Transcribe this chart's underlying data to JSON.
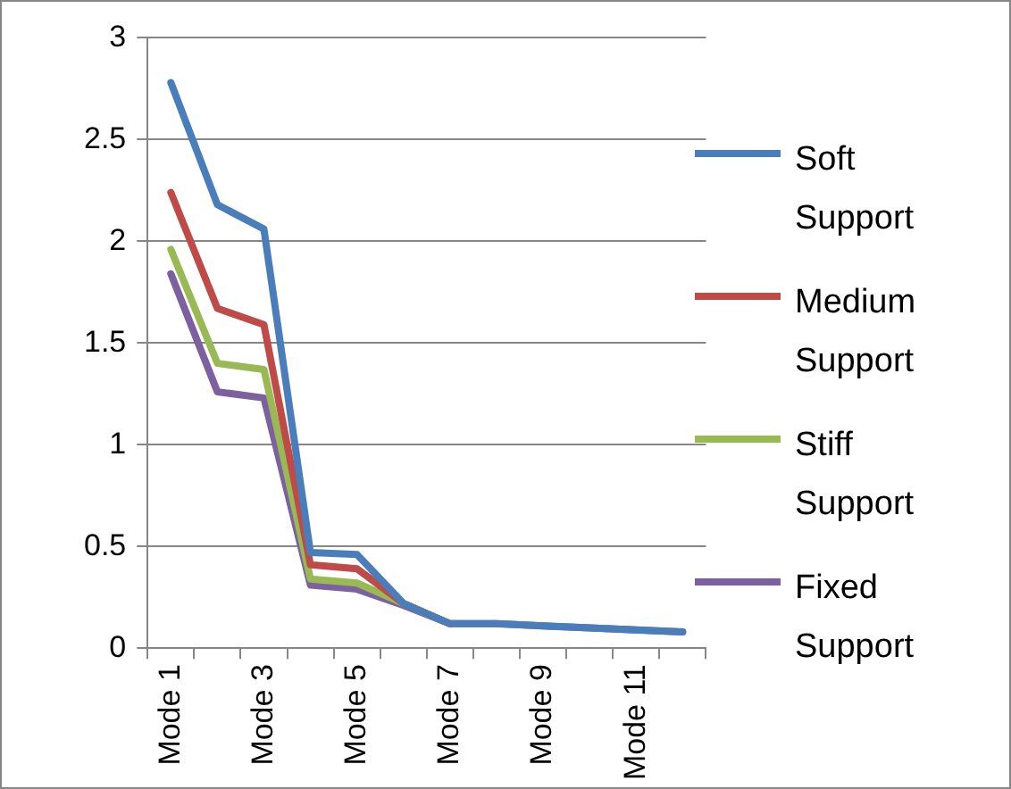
{
  "chart_data": {
    "type": "line",
    "categories": [
      "Mode 1",
      null,
      "Mode 3",
      null,
      "Mode 5",
      null,
      "Mode 7",
      null,
      "Mode 9",
      null,
      "Mode 11",
      null
    ],
    "series": [
      {
        "name": "Soft Support",
        "color": "#4a7ebb",
        "values": [
          2.78,
          2.18,
          2.06,
          0.47,
          0.46,
          0.22,
          0.12,
          0.12,
          0.11,
          0.1,
          0.09,
          0.08
        ]
      },
      {
        "name": "Medium Support",
        "color": "#be4b48",
        "values": [
          2.24,
          1.67,
          1.59,
          0.41,
          0.39,
          0.22,
          0.12,
          null,
          null,
          null,
          null,
          null
        ]
      },
      {
        "name": "Stiff Support",
        "color": "#98b954",
        "values": [
          1.96,
          1.4,
          1.37,
          0.34,
          0.32,
          0.22,
          0.12,
          null,
          null,
          null,
          null,
          null
        ]
      },
      {
        "name": "Fixed Support",
        "color": "#7d60a0",
        "values": [
          1.84,
          1.26,
          1.23,
          0.31,
          0.29,
          0.21,
          0.12,
          0.12,
          0.11,
          0.1,
          0.09,
          0.08
        ]
      }
    ],
    "ylim": [
      0,
      3
    ],
    "yticks": [
      0,
      0.5,
      1,
      1.5,
      2,
      2.5,
      3
    ],
    "grid": "y",
    "legend": "right",
    "marker": "none",
    "line_style": "solid"
  }
}
